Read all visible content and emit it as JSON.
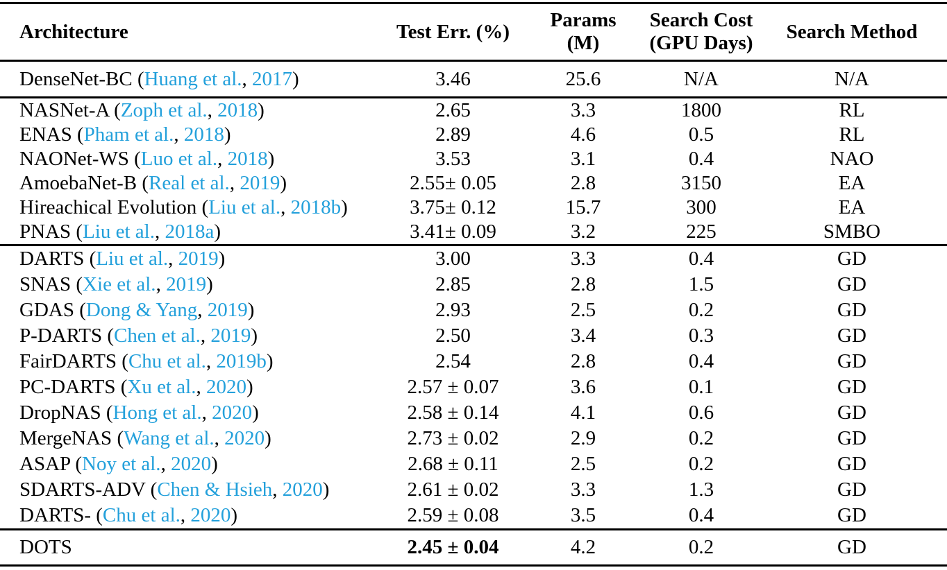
{
  "colors": {
    "background": "#ffffff",
    "text": "#000000",
    "rule": "#000000",
    "citation_link": "#23a0db"
  },
  "format": {
    "cite_open": " (",
    "cite_sep": ", ",
    "cite_close": ")"
  },
  "table": {
    "columns": [
      {
        "key": "architecture",
        "line1": "Architecture",
        "line2": ""
      },
      {
        "key": "test-err",
        "line1": "Test Err. (%)",
        "line2": ""
      },
      {
        "key": "params",
        "line1": "Params",
        "line2": "(M)"
      },
      {
        "key": "search-cost",
        "line1": "Search Cost",
        "line2": "(GPU Days)"
      },
      {
        "key": "search-method",
        "line1": "Search Method",
        "line2": ""
      }
    ],
    "groups": [
      {
        "rows": [
          {
            "name": "DenseNet-BC",
            "cite": {
              "author": "Huang et al.",
              "year": "2017"
            },
            "test_err": "3.46",
            "err_bold": false,
            "params": "25.6",
            "cost": "N/A",
            "method": "N/A"
          }
        ]
      },
      {
        "rows": [
          {
            "name": "NASNet-A",
            "cite": {
              "author": "Zoph et al.",
              "year": "2018"
            },
            "test_err": "2.65",
            "err_bold": false,
            "params": "3.3",
            "cost": "1800",
            "method": "RL"
          },
          {
            "name": "ENAS",
            "cite": {
              "author": "Pham et al.",
              "year": "2018"
            },
            "test_err": "2.89",
            "err_bold": false,
            "params": "4.6",
            "cost": "0.5",
            "method": "RL"
          },
          {
            "name": "NAONet-WS",
            "cite": {
              "author": "Luo et al.",
              "year": "2018"
            },
            "test_err": "3.53",
            "err_bold": false,
            "params": "3.1",
            "cost": "0.4",
            "method": "NAO"
          },
          {
            "name": "AmoebaNet-B",
            "cite": {
              "author": "Real et al.",
              "year": "2019"
            },
            "test_err": "2.55± 0.05",
            "err_bold": false,
            "params": "2.8",
            "cost": "3150",
            "method": "EA"
          },
          {
            "name": "Hireachical Evolution",
            "cite": {
              "author": "Liu et al.",
              "year": "2018b"
            },
            "test_err": "3.75± 0.12",
            "err_bold": false,
            "params": "15.7",
            "cost": "300",
            "method": "EA"
          },
          {
            "name": "PNAS",
            "cite": {
              "author": "Liu et al.",
              "year": "2018a"
            },
            "test_err": "3.41± 0.09",
            "err_bold": false,
            "params": "3.2",
            "cost": "225",
            "method": "SMBO"
          }
        ]
      },
      {
        "rows": [
          {
            "name": "DARTS",
            "cite": {
              "author": "Liu et al.",
              "year": "2019"
            },
            "test_err": "3.00",
            "err_bold": false,
            "params": "3.3",
            "cost": "0.4",
            "method": "GD"
          },
          {
            "name": "SNAS",
            "cite": {
              "author": "Xie et al.",
              "year": "2019"
            },
            "test_err": "2.85",
            "err_bold": false,
            "params": "2.8",
            "cost": "1.5",
            "method": "GD"
          },
          {
            "name": "GDAS",
            "cite": {
              "author": "Dong & Yang",
              "year": "2019"
            },
            "test_err": "2.93",
            "err_bold": false,
            "params": "2.5",
            "cost": "0.2",
            "method": "GD"
          },
          {
            "name": "P-DARTS",
            "cite": {
              "author": "Chen et al.",
              "year": "2019"
            },
            "test_err": "2.50",
            "err_bold": false,
            "params": "3.4",
            "cost": "0.3",
            "method": "GD"
          },
          {
            "name": "FairDARTS",
            "cite": {
              "author": "Chu et al.",
              "year": "2019b"
            },
            "test_err": "2.54",
            "err_bold": false,
            "params": "2.8",
            "cost": "0.4",
            "method": "GD"
          },
          {
            "name": "PC-DARTS",
            "cite": {
              "author": "Xu et al.",
              "year": "2020"
            },
            "test_err": "2.57 ± 0.07",
            "err_bold": false,
            "params": "3.6",
            "cost": "0.1",
            "method": "GD"
          },
          {
            "name": "DropNAS",
            "cite": {
              "author": "Hong et al.",
              "year": "2020"
            },
            "test_err": "2.58 ± 0.14",
            "err_bold": false,
            "params": "4.1",
            "cost": "0.6",
            "method": "GD"
          },
          {
            "name": "MergeNAS",
            "cite": {
              "author": "Wang et al.",
              "year": "2020"
            },
            "test_err": "2.73 ± 0.02",
            "err_bold": false,
            "params": "2.9",
            "cost": "0.2",
            "method": "GD"
          },
          {
            "name": "ASAP",
            "cite": {
              "author": "Noy et al.",
              "year": "2020"
            },
            "test_err": "2.68 ± 0.11",
            "err_bold": false,
            "params": "2.5",
            "cost": "0.2",
            "method": "GD"
          },
          {
            "name": "SDARTS-ADV",
            "cite": {
              "author": "Chen & Hsieh",
              "year": "2020"
            },
            "test_err": "2.61 ± 0.02",
            "err_bold": false,
            "params": "3.3",
            "cost": "1.3",
            "method": "GD"
          },
          {
            "name": "DARTS-",
            "cite": {
              "author": "Chu et al.",
              "year": "2020"
            },
            "test_err": "2.59 ± 0.08",
            "err_bold": false,
            "params": "3.5",
            "cost": "0.4",
            "method": "GD"
          }
        ]
      },
      {
        "rows": [
          {
            "name": "DOTS",
            "cite": null,
            "test_err": "2.45 ± 0.04",
            "err_bold": true,
            "params": "4.2",
            "cost": "0.2",
            "method": "GD"
          }
        ]
      }
    ]
  }
}
